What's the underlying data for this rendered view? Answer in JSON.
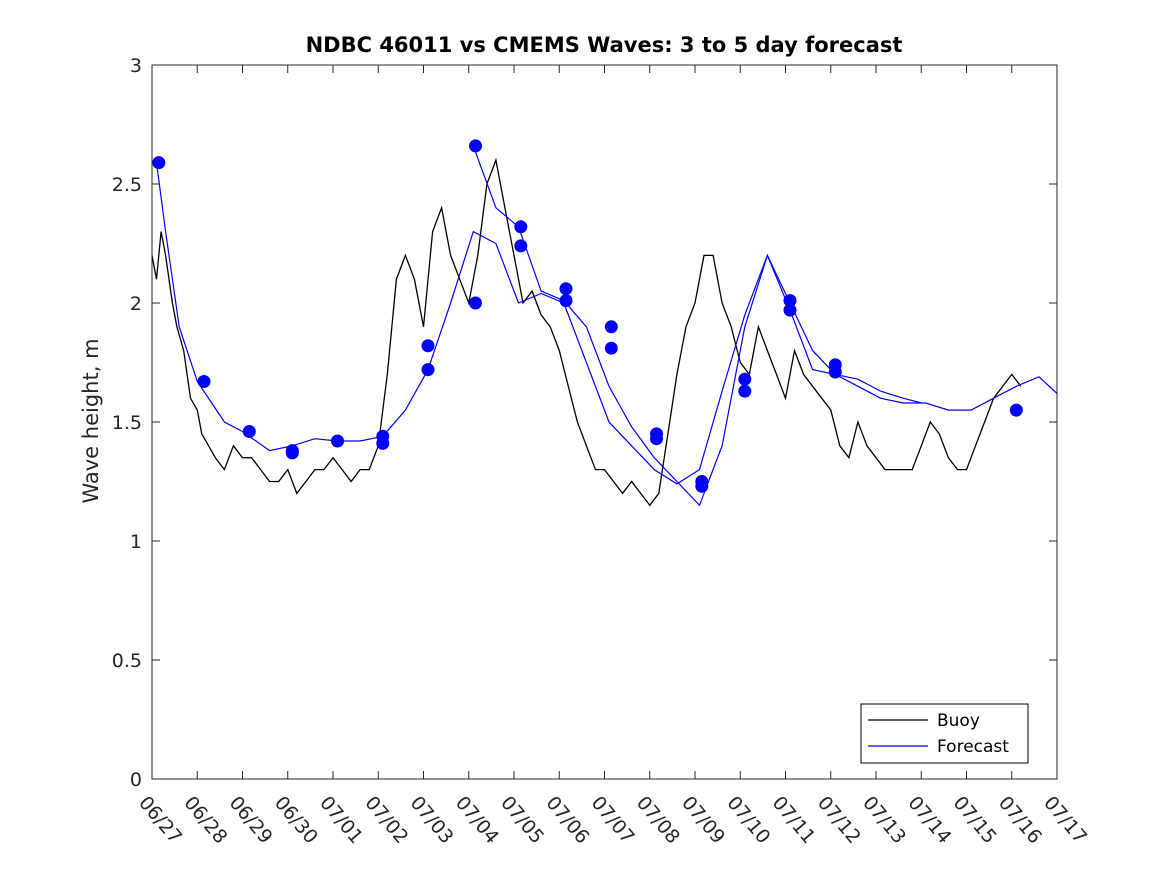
{
  "chart_data": {
    "type": "line",
    "title": "NDBC 46011 vs CMEMS Waves: 3 to 5 day forecast",
    "xlabel": "",
    "ylabel": "Wave height, m",
    "xlim": [
      "06/27",
      "07/17"
    ],
    "ylim": [
      0,
      3
    ],
    "x_ticks": [
      "06/27",
      "06/28",
      "06/29",
      "06/30",
      "07/01",
      "07/02",
      "07/03",
      "07/04",
      "07/05",
      "07/06",
      "07/07",
      "07/08",
      "07/09",
      "07/10",
      "07/11",
      "07/12",
      "07/13",
      "07/14",
      "07/15",
      "07/16",
      "07/17"
    ],
    "y_ticks": [
      0,
      0.5,
      1,
      1.5,
      2,
      2.5,
      3
    ],
    "y_tick_labels": [
      "0",
      "0.5",
      "1",
      "1.5",
      "2",
      "2.5",
      "3"
    ],
    "grid": false,
    "legend": {
      "position": "bottom-right",
      "entries": [
        {
          "label": "Buoy",
          "color": "#000000"
        },
        {
          "label": "Forecast",
          "color": "#0000ff"
        }
      ]
    },
    "colors": {
      "buoy": "#000000",
      "forecast": "#0000ff"
    },
    "x_unit": "days since 06/27",
    "series": [
      {
        "name": "Buoy",
        "color": "#000000",
        "x": [
          0,
          0.1,
          0.2,
          0.3,
          0.45,
          0.55,
          0.7,
          0.85,
          1.0,
          1.1,
          1.25,
          1.4,
          1.6,
          1.8,
          2.0,
          2.2,
          2.4,
          2.6,
          2.8,
          3.0,
          3.2,
          3.4,
          3.6,
          3.8,
          4.0,
          4.2,
          4.4,
          4.6,
          4.8,
          5.0,
          5.2,
          5.4,
          5.6,
          5.8,
          6.0,
          6.2,
          6.4,
          6.5,
          6.6,
          6.8,
          7.0,
          7.2,
          7.4,
          7.6,
          7.8,
          8.0,
          8.2,
          8.4,
          8.6,
          8.8,
          9.0,
          9.2,
          9.4,
          9.6,
          9.8,
          10.0,
          10.2,
          10.4,
          10.6,
          10.8,
          11.0,
          11.2,
          11.4,
          11.6,
          11.8,
          12.0,
          12.2,
          12.4,
          12.6,
          12.8,
          13.0,
          13.2,
          13.4,
          13.6,
          13.8,
          14.0,
          14.2,
          14.4,
          14.6,
          14.8,
          15.0,
          15.2,
          15.4,
          15.6,
          15.8,
          16.0,
          16.2,
          16.4,
          16.6,
          16.8,
          17.0,
          17.2,
          17.4,
          17.6,
          17.8,
          18.0,
          18.2,
          18.4,
          18.6,
          18.8,
          19.0,
          19.2
        ],
        "y": [
          2.2,
          2.1,
          2.3,
          2.2,
          2.0,
          1.9,
          1.8,
          1.6,
          1.55,
          1.45,
          1.4,
          1.35,
          1.3,
          1.4,
          1.35,
          1.35,
          1.3,
          1.25,
          1.25,
          1.3,
          1.2,
          1.25,
          1.3,
          1.3,
          1.35,
          1.3,
          1.25,
          1.3,
          1.3,
          1.4,
          1.7,
          2.1,
          2.2,
          2.1,
          1.9,
          2.3,
          2.4,
          2.3,
          2.2,
          2.1,
          2.0,
          2.2,
          2.5,
          2.6,
          2.4,
          2.2,
          2.0,
          2.05,
          1.95,
          1.9,
          1.8,
          1.65,
          1.5,
          1.4,
          1.3,
          1.3,
          1.25,
          1.2,
          1.25,
          1.2,
          1.15,
          1.2,
          1.45,
          1.7,
          1.9,
          2.0,
          2.2,
          2.2,
          2.0,
          1.9,
          1.75,
          1.7,
          1.9,
          1.8,
          1.7,
          1.6,
          1.8,
          1.7,
          1.65,
          1.6,
          1.55,
          1.4,
          1.35,
          1.5,
          1.4,
          1.35,
          1.3,
          1.3,
          1.3,
          1.3,
          1.4,
          1.5,
          1.45,
          1.35,
          1.3,
          1.3,
          1.4,
          1.5,
          1.6,
          1.65,
          1.7,
          1.65
        ]
      },
      {
        "name": "Forecast",
        "color": "#0000ff",
        "x": [
          0.1,
          0.3,
          0.6,
          1.0,
          1.6,
          2.0,
          2.6,
          3.1,
          3.6,
          4.1,
          4.6,
          5.1,
          5.6,
          6.1,
          6.6,
          7.1,
          7.6,
          8.1,
          8.6,
          9.1,
          9.6,
          10.1,
          10.6,
          11.1,
          11.6,
          12.1,
          12.6,
          13.1,
          13.6,
          14.1,
          14.6,
          15.1,
          15.6,
          16.1,
          16.6,
          17.1,
          17.6,
          18.1,
          18.6,
          19.1,
          19.6,
          20.0
        ],
        "y": [
          2.59,
          2.3,
          1.9,
          1.67,
          1.5,
          1.46,
          1.38,
          1.4,
          1.43,
          1.42,
          1.42,
          1.44,
          1.55,
          1.72,
          2.0,
          2.3,
          2.25,
          2.0,
          2.04,
          2.0,
          1.75,
          1.5,
          1.4,
          1.3,
          1.24,
          1.3,
          1.63,
          1.95,
          2.2,
          2.0,
          1.8,
          1.7,
          1.65,
          1.6,
          1.58,
          1.58,
          1.55,
          1.55,
          1.6,
          1.65,
          1.69,
          1.62
        ]
      },
      {
        "name": "",
        "color": "#0000ff",
        "x": [
          7.1,
          7.6,
          8.1,
          8.6,
          9.1,
          9.6,
          10.1,
          10.6,
          11.1,
          11.6,
          12.1,
          12.6,
          13.1,
          13.6,
          14.1,
          14.6,
          15.1,
          15.6,
          16.1,
          16.6,
          17.0
        ],
        "y": [
          2.66,
          2.4,
          2.32,
          2.05,
          2.01,
          1.9,
          1.65,
          1.48,
          1.35,
          1.25,
          1.15,
          1.4,
          1.9,
          2.2,
          1.97,
          1.72,
          1.7,
          1.68,
          1.63,
          1.6,
          1.58
        ]
      }
    ],
    "markers": {
      "x": [
        0.15,
        1.15,
        2.15,
        3.1,
        3.1,
        4.1,
        5.1,
        5.1,
        6.1,
        6.1,
        7.15,
        7.15,
        8.15,
        8.15,
        9.15,
        9.15,
        10.15,
        10.15,
        11.15,
        11.15,
        12.15,
        12.15,
        13.1,
        13.1,
        14.1,
        14.1,
        15.1,
        15.1,
        19.1
      ],
      "y": [
        2.59,
        1.67,
        1.46,
        1.37,
        1.38,
        1.42,
        1.41,
        1.44,
        1.72,
        1.82,
        2.0,
        2.66,
        2.24,
        2.32,
        2.01,
        2.06,
        1.81,
        1.9,
        1.43,
        1.45,
        1.23,
        1.25,
        1.63,
        1.68,
        1.97,
        2.01,
        1.71,
        1.74,
        1.55
      ]
    }
  }
}
